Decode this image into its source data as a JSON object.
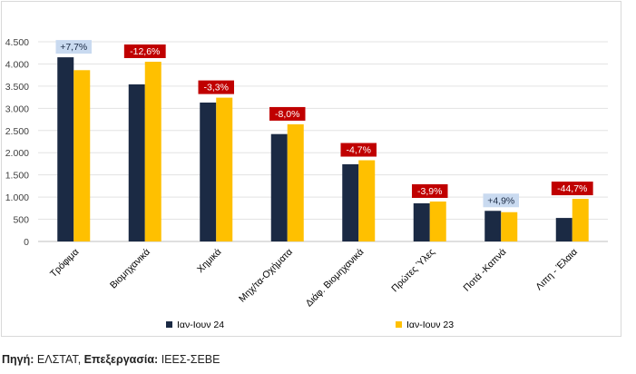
{
  "chart_data": {
    "type": "bar",
    "categories": [
      "Τρόφιμα",
      "Βιομηχανικά",
      "Χημικά",
      "Μηχ/τα-Οχήματα",
      "Διάφ. Βιομηχανικά",
      "Πρώτες Ύλες",
      "Ποτά -Καπνά",
      "Λιπη - Έλαια"
    ],
    "series": [
      {
        "name": "Ιαν-Ιουν 24",
        "values": [
          4150,
          3540,
          3130,
          2420,
          1740,
          860,
          690,
          530
        ],
        "color": "#1b2a44"
      },
      {
        "name": "Ιαν-Ιουν 23",
        "values": [
          3860,
          4050,
          3240,
          2640,
          1830,
          900,
          660,
          960
        ],
        "color": "#ffc000"
      }
    ],
    "change_labels": [
      "+7,7%",
      "-12,6%",
      "-3,3%",
      "-8,0%",
      "-4,7%",
      "-3,9%",
      "+4,9%",
      "-44,7%"
    ],
    "change_positive_bg": "#c9daf0",
    "change_negative_bg": "#c00000",
    "ylim": [
      0,
      4500
    ],
    "yticks": [
      0,
      500,
      1000,
      1500,
      2000,
      2500,
      3000,
      3500,
      4000,
      4500
    ],
    "ytick_labels": [
      "0",
      "500",
      "1.000",
      "1.500",
      "2.000",
      "2.500",
      "3.000",
      "3.500",
      "4.000",
      "4.500"
    ],
    "grid": true,
    "legend_position": "bottom"
  },
  "caption": {
    "source_label": "Πηγή:",
    "source_value": " ΕΛΣΤΑΤ, ",
    "processing_label": "Επεξεργασία:",
    "processing_value": " ΙΕΕΣ-ΣΕΒΕ"
  }
}
